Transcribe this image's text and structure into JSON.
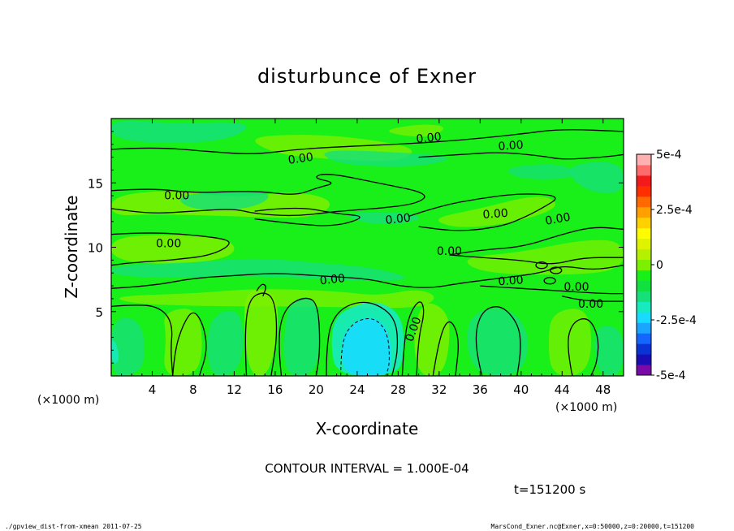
{
  "chart_data": {
    "type": "heatmap",
    "title": "disturbunce of Exner",
    "xlabel": "X-coordinate",
    "ylabel": "Z-coordinate",
    "x_unit": "(×1000 m)",
    "z_unit": "(×1000 m)",
    "xlim": [
      0,
      50
    ],
    "ylim": [
      0,
      20
    ],
    "x_ticks": [
      4,
      8,
      12,
      16,
      20,
      24,
      28,
      32,
      36,
      40,
      44,
      48
    ],
    "y_ticks": [
      5,
      10,
      15
    ],
    "colorbar": {
      "range": [
        -0.0005,
        0.0005
      ],
      "tick_labels": [
        "5e-4",
        "2.5e-4",
        "0",
        "-2.5e-4",
        "-5e-4"
      ],
      "tick_values": [
        0.0005,
        0.00025,
        0,
        -0.00025,
        -0.0005
      ],
      "colors": [
        "#7a0aa8",
        "#1a0db3",
        "#0a33d6",
        "#1466ff",
        "#1aa6ff",
        "#17dcff",
        "#18eac0",
        "#16e07a",
        "#10e040",
        "#18f018",
        "#7cf000",
        "#b4f000",
        "#dff300",
        "#fffb00",
        "#ffd100",
        "#ff9f00",
        "#ff6a00",
        "#ff2e00",
        "#f21a1a",
        "#ff6a6a",
        "#ffb0b0"
      ]
    },
    "contour_label": "0.00",
    "contour_interval_text": "CONTOUR INTERVAL = 1.000E-04",
    "time_text": "t=151200  s"
  },
  "footer": {
    "left": "./gpview_dist-from-xmean  2011-07-25",
    "right": "MarsCond_Exner.nc@Exner,x=0:50000,z=0:20000,t=151200"
  }
}
